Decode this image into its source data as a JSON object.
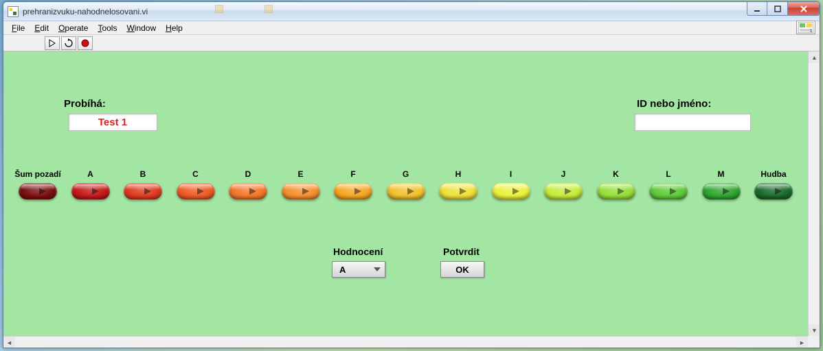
{
  "window": {
    "title": "prehranizvuku-nahodnelosovani.vi"
  },
  "menu": {
    "file": "File",
    "edit": "Edit",
    "operate": "Operate",
    "tools": "Tools",
    "window": "Window",
    "help": "Help"
  },
  "labels": {
    "probiha": "Probíhá:",
    "id": "ID nebo jméno:",
    "hodnoceni": "Hodnocení",
    "potvrdit": "Potvrdit"
  },
  "fields": {
    "probiha_value": "Test 1",
    "id_value": ""
  },
  "buttons": [
    {
      "label": "Šum pozadí",
      "color": "#7a0e0e"
    },
    {
      "label": "A",
      "color": "#c31818"
    },
    {
      "label": "B",
      "color": "#e03a1f"
    },
    {
      "label": "C",
      "color": "#ee5a24"
    },
    {
      "label": "D",
      "color": "#f3782a"
    },
    {
      "label": "E",
      "color": "#f58f2e"
    },
    {
      "label": "F",
      "color": "#f5a623"
    },
    {
      "label": "G",
      "color": "#f2c12e"
    },
    {
      "label": "H",
      "color": "#efe13a"
    },
    {
      "label": "I",
      "color": "#e9f23a"
    },
    {
      "label": "J",
      "color": "#c6ec3a"
    },
    {
      "label": "K",
      "color": "#97df3a"
    },
    {
      "label": "L",
      "color": "#5fca3a"
    },
    {
      "label": "M",
      "color": "#2fa52f"
    },
    {
      "label": "Hudba",
      "color": "#1a6a2a"
    }
  ],
  "dropdown": {
    "selected": "A"
  },
  "ok_button": "OK",
  "colors": {
    "panel_bg": "#a3e6a3",
    "probiha_text": "#e02020"
  }
}
